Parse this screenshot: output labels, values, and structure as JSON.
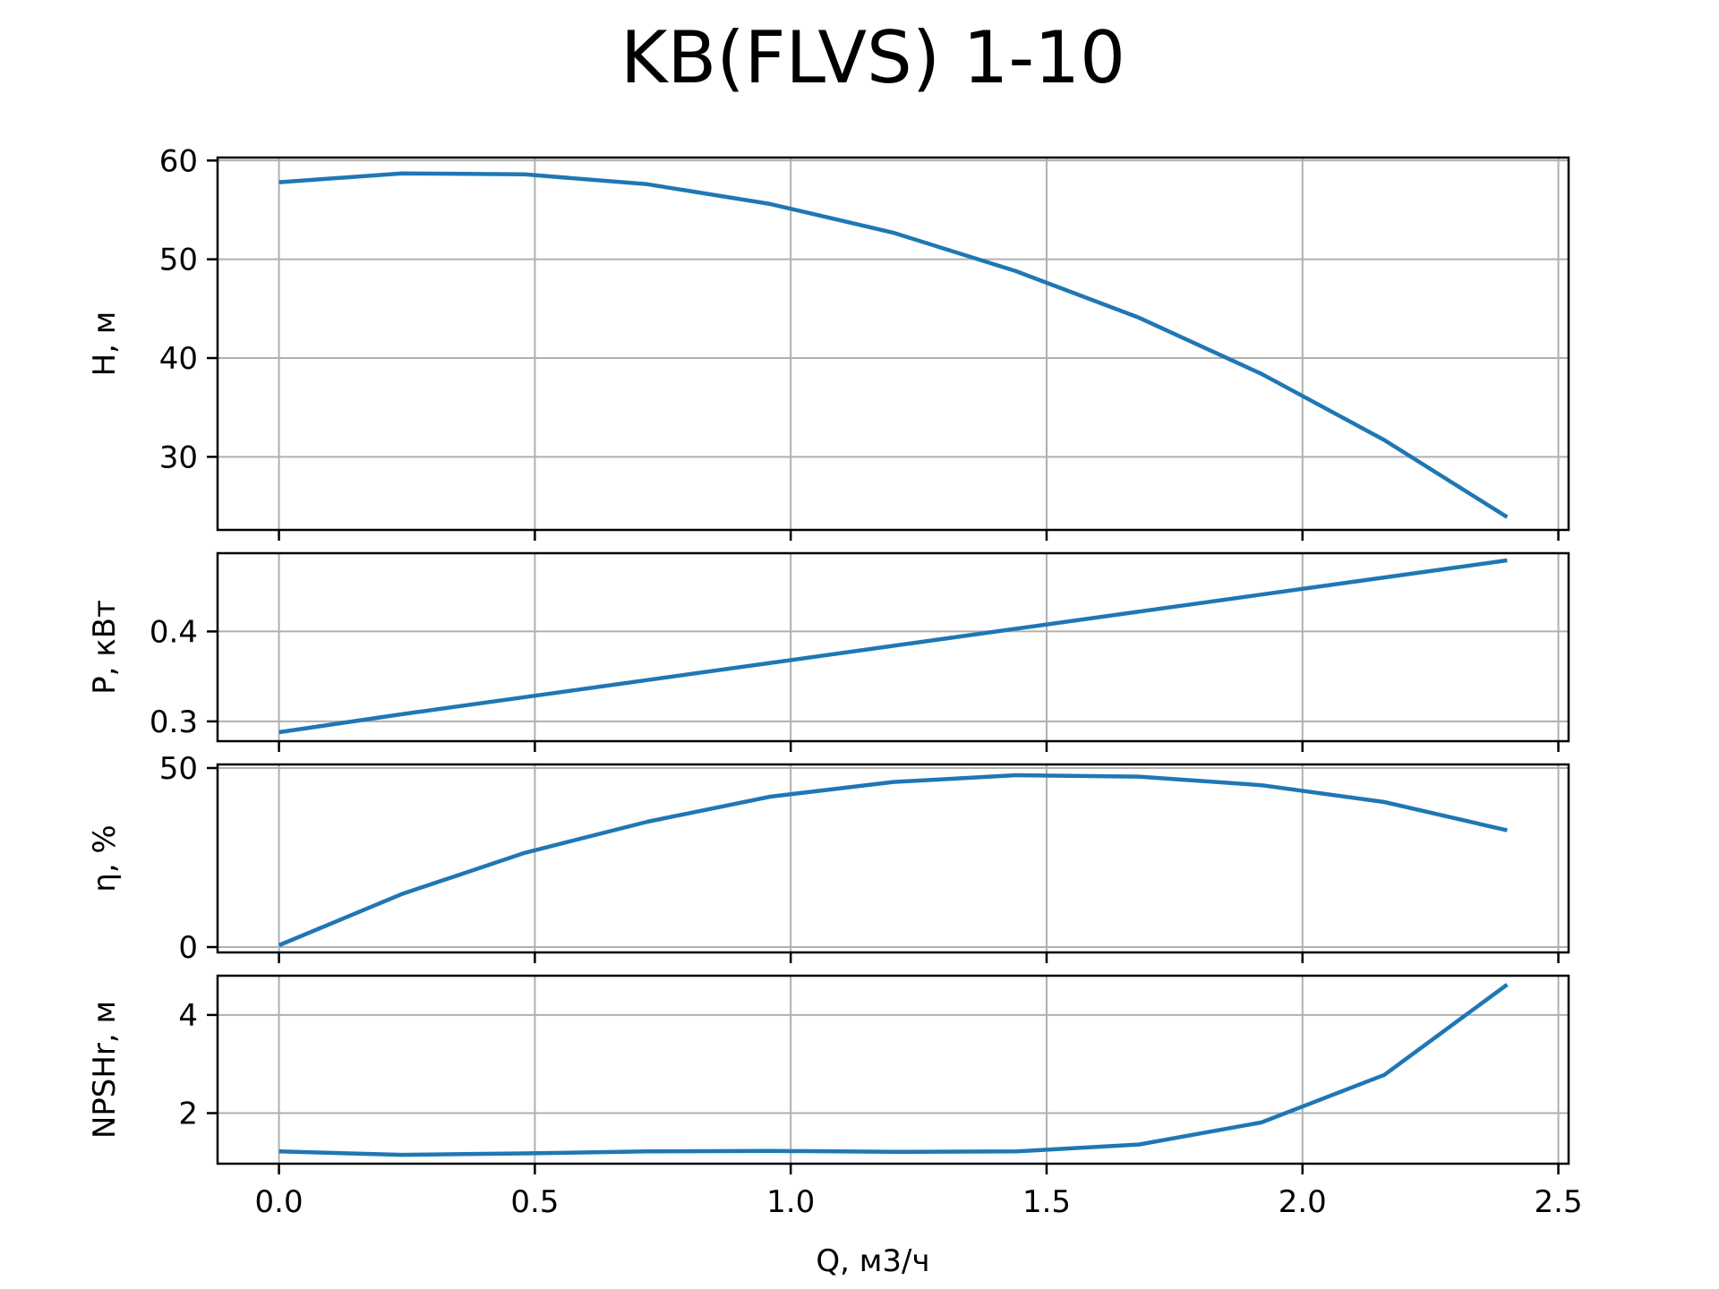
{
  "chart_data": {
    "type": "line",
    "title": "KB(FLVS) 1-10",
    "xlabel": "Q, м3/ч",
    "x_ticks": [
      "0.0",
      "0.5",
      "1.0",
      "1.5",
      "2.0",
      "2.5"
    ],
    "x_tick_values": [
      0.0,
      0.5,
      1.0,
      1.5,
      2.0,
      2.5
    ],
    "xlim": [
      -0.12,
      2.52
    ],
    "grid": true,
    "line_color": "#1f77b4",
    "x": [
      0.0,
      0.24,
      0.48,
      0.72,
      0.96,
      1.2,
      1.44,
      1.68,
      1.92,
      2.16,
      2.4
    ],
    "panels": [
      {
        "name": "H",
        "ylabel": "H, м",
        "ylim": [
          22.6,
          60.3
        ],
        "y_ticks": [
          "30",
          "40",
          "50",
          "60"
        ],
        "y_tick_values": [
          30,
          40,
          50,
          60
        ],
        "values": [
          57.8,
          58.7,
          58.6,
          57.6,
          55.6,
          52.7,
          48.8,
          44.1,
          38.4,
          31.7,
          23.9
        ]
      },
      {
        "name": "P",
        "ylabel": "P, кВт",
        "ylim": [
          0.278,
          0.487
        ],
        "y_ticks": [
          "0.3",
          "0.4"
        ],
        "y_tick_values": [
          0.3,
          0.4
        ],
        "values": [
          0.288,
          0.308,
          0.327,
          0.346,
          0.365,
          0.384,
          0.403,
          0.422,
          0.441,
          0.46,
          0.479
        ]
      },
      {
        "name": "eta",
        "ylabel": "η, %",
        "ylim": [
          -1.5,
          51.0
        ],
        "y_ticks": [
          "0",
          "50"
        ],
        "y_tick_values": [
          0,
          50
        ],
        "values": [
          0.5,
          14.8,
          26.3,
          35.0,
          42.0,
          46.1,
          48.0,
          47.6,
          45.2,
          40.5,
          32.6
        ]
      },
      {
        "name": "NPSHr",
        "ylabel": "NPSHr, м",
        "ylim": [
          0.97,
          4.8
        ],
        "y_ticks": [
          "2",
          "4"
        ],
        "y_tick_values": [
          2,
          4
        ],
        "values": [
          1.22,
          1.15,
          1.18,
          1.22,
          1.23,
          1.21,
          1.22,
          1.36,
          1.81,
          2.78,
          4.62
        ]
      }
    ]
  }
}
